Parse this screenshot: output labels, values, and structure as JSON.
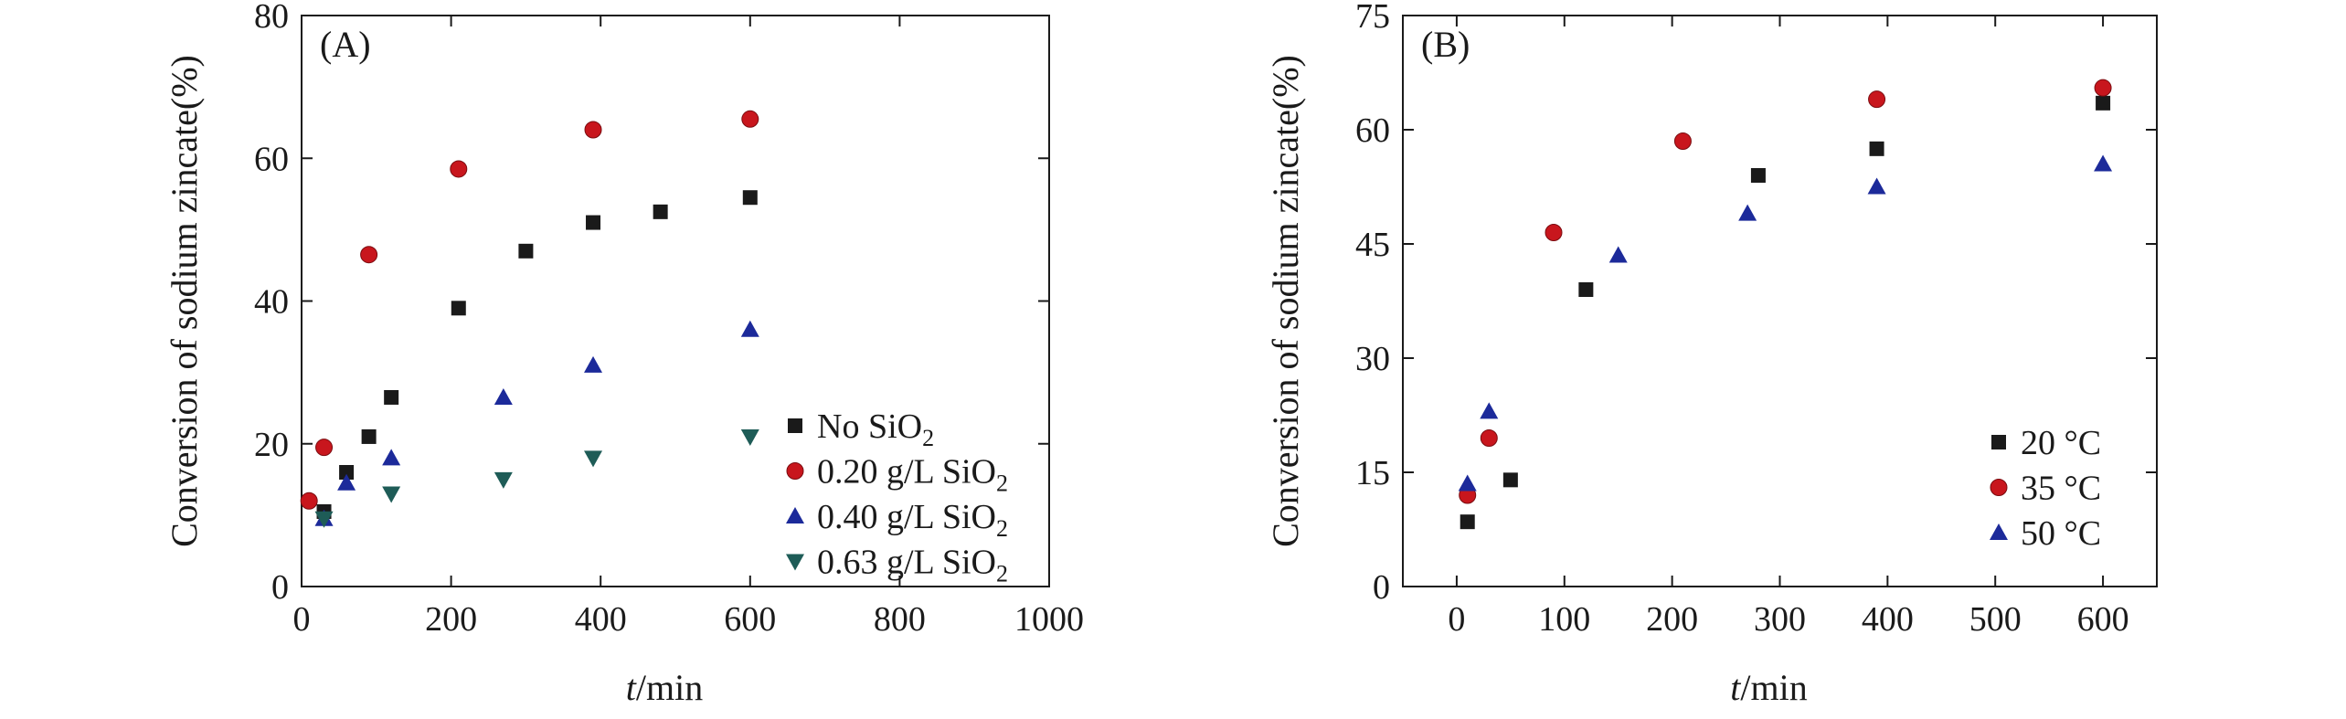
{
  "chart_data": [
    {
      "type": "scatter",
      "panel_label": "(A)",
      "xlabel_italic": "t",
      "xlabel_unit": "/min",
      "ylabel": "Conversion of sodium zincate(%)",
      "xlim": [
        0,
        1000
      ],
      "ylim": [
        0,
        80
      ],
      "xticks": [
        0,
        200,
        400,
        600,
        800,
        1000
      ],
      "yticks": [
        0,
        20,
        40,
        60,
        80
      ],
      "xtick_labels": [
        "0",
        "200",
        "400",
        "600",
        "800",
        "1000"
      ],
      "ytick_labels": [
        "0",
        "20",
        "40",
        "60",
        "80"
      ],
      "legend_position": "bottom-right",
      "series": [
        {
          "name": "No SiO2",
          "label_main": "No SiO",
          "label_sub": "2",
          "marker": "square",
          "color": "#1a1a1a",
          "x": [
            30,
            60,
            90,
            120,
            210,
            300,
            390,
            480,
            600
          ],
          "y": [
            10.5,
            16,
            21,
            26.5,
            39,
            47,
            51,
            52.5,
            54.5
          ]
        },
        {
          "name": "0.20 g/L SiO2",
          "label_main": "0.20 g/L SiO",
          "label_sub": "2",
          "marker": "circle",
          "color": "#c8161d",
          "x": [
            10,
            30,
            90,
            210,
            390,
            600
          ],
          "y": [
            12,
            19.5,
            46.5,
            58.5,
            64,
            65.5
          ]
        },
        {
          "name": "0.40 g/L SiO2",
          "label_main": "0.40 g/L SiO",
          "label_sub": "2",
          "marker": "triangle-up",
          "color": "#1c2a9a",
          "x": [
            30,
            60,
            120,
            270,
            390,
            600
          ],
          "y": [
            9.5,
            14.5,
            18,
            26.5,
            31,
            36
          ]
        },
        {
          "name": "0.63 g/L SiO2",
          "label_main": "0.63 g/L SiO",
          "label_sub": "2",
          "marker": "triangle-down",
          "color": "#1e5c57",
          "x": [
            30,
            120,
            270,
            390,
            600
          ],
          "y": [
            9.5,
            13,
            15,
            18,
            21
          ]
        }
      ]
    },
    {
      "type": "scatter",
      "panel_label": "(B)",
      "xlabel_italic": "t",
      "xlabel_unit": "/min",
      "ylabel": "Conversion of sodium zincate(%)",
      "xlim": [
        -50,
        650
      ],
      "ylim": [
        0,
        75
      ],
      "xticks": [
        0,
        100,
        200,
        300,
        400,
        500,
        600
      ],
      "yticks": [
        0,
        15,
        30,
        45,
        60,
        75
      ],
      "xtick_labels": [
        "0",
        "100",
        "200",
        "300",
        "400",
        "500",
        "600"
      ],
      "ytick_labels": [
        "0",
        "15",
        "30",
        "45",
        "60",
        "75"
      ],
      "legend_position": "bottom-right",
      "series": [
        {
          "name": "20 °C",
          "label_main": "20 °C",
          "label_sub": "",
          "marker": "square",
          "color": "#1a1a1a",
          "x": [
            10,
            50,
            120,
            280,
            390,
            600
          ],
          "y": [
            8.5,
            14,
            39,
            54,
            57.5,
            63.5
          ]
        },
        {
          "name": "35 °C",
          "label_main": "35 °C",
          "label_sub": "",
          "marker": "circle",
          "color": "#c8161d",
          "x": [
            10,
            30,
            90,
            210,
            390,
            600
          ],
          "y": [
            12,
            19.5,
            46.5,
            58.5,
            64,
            65.5
          ]
        },
        {
          "name": "50 °C",
          "label_main": "50 °C",
          "label_sub": "",
          "marker": "triangle-up",
          "color": "#1c2a9a",
          "x": [
            10,
            30,
            150,
            270,
            390,
            600
          ],
          "y": [
            13.5,
            23,
            43.5,
            49,
            52.5,
            55.5
          ]
        }
      ]
    }
  ]
}
